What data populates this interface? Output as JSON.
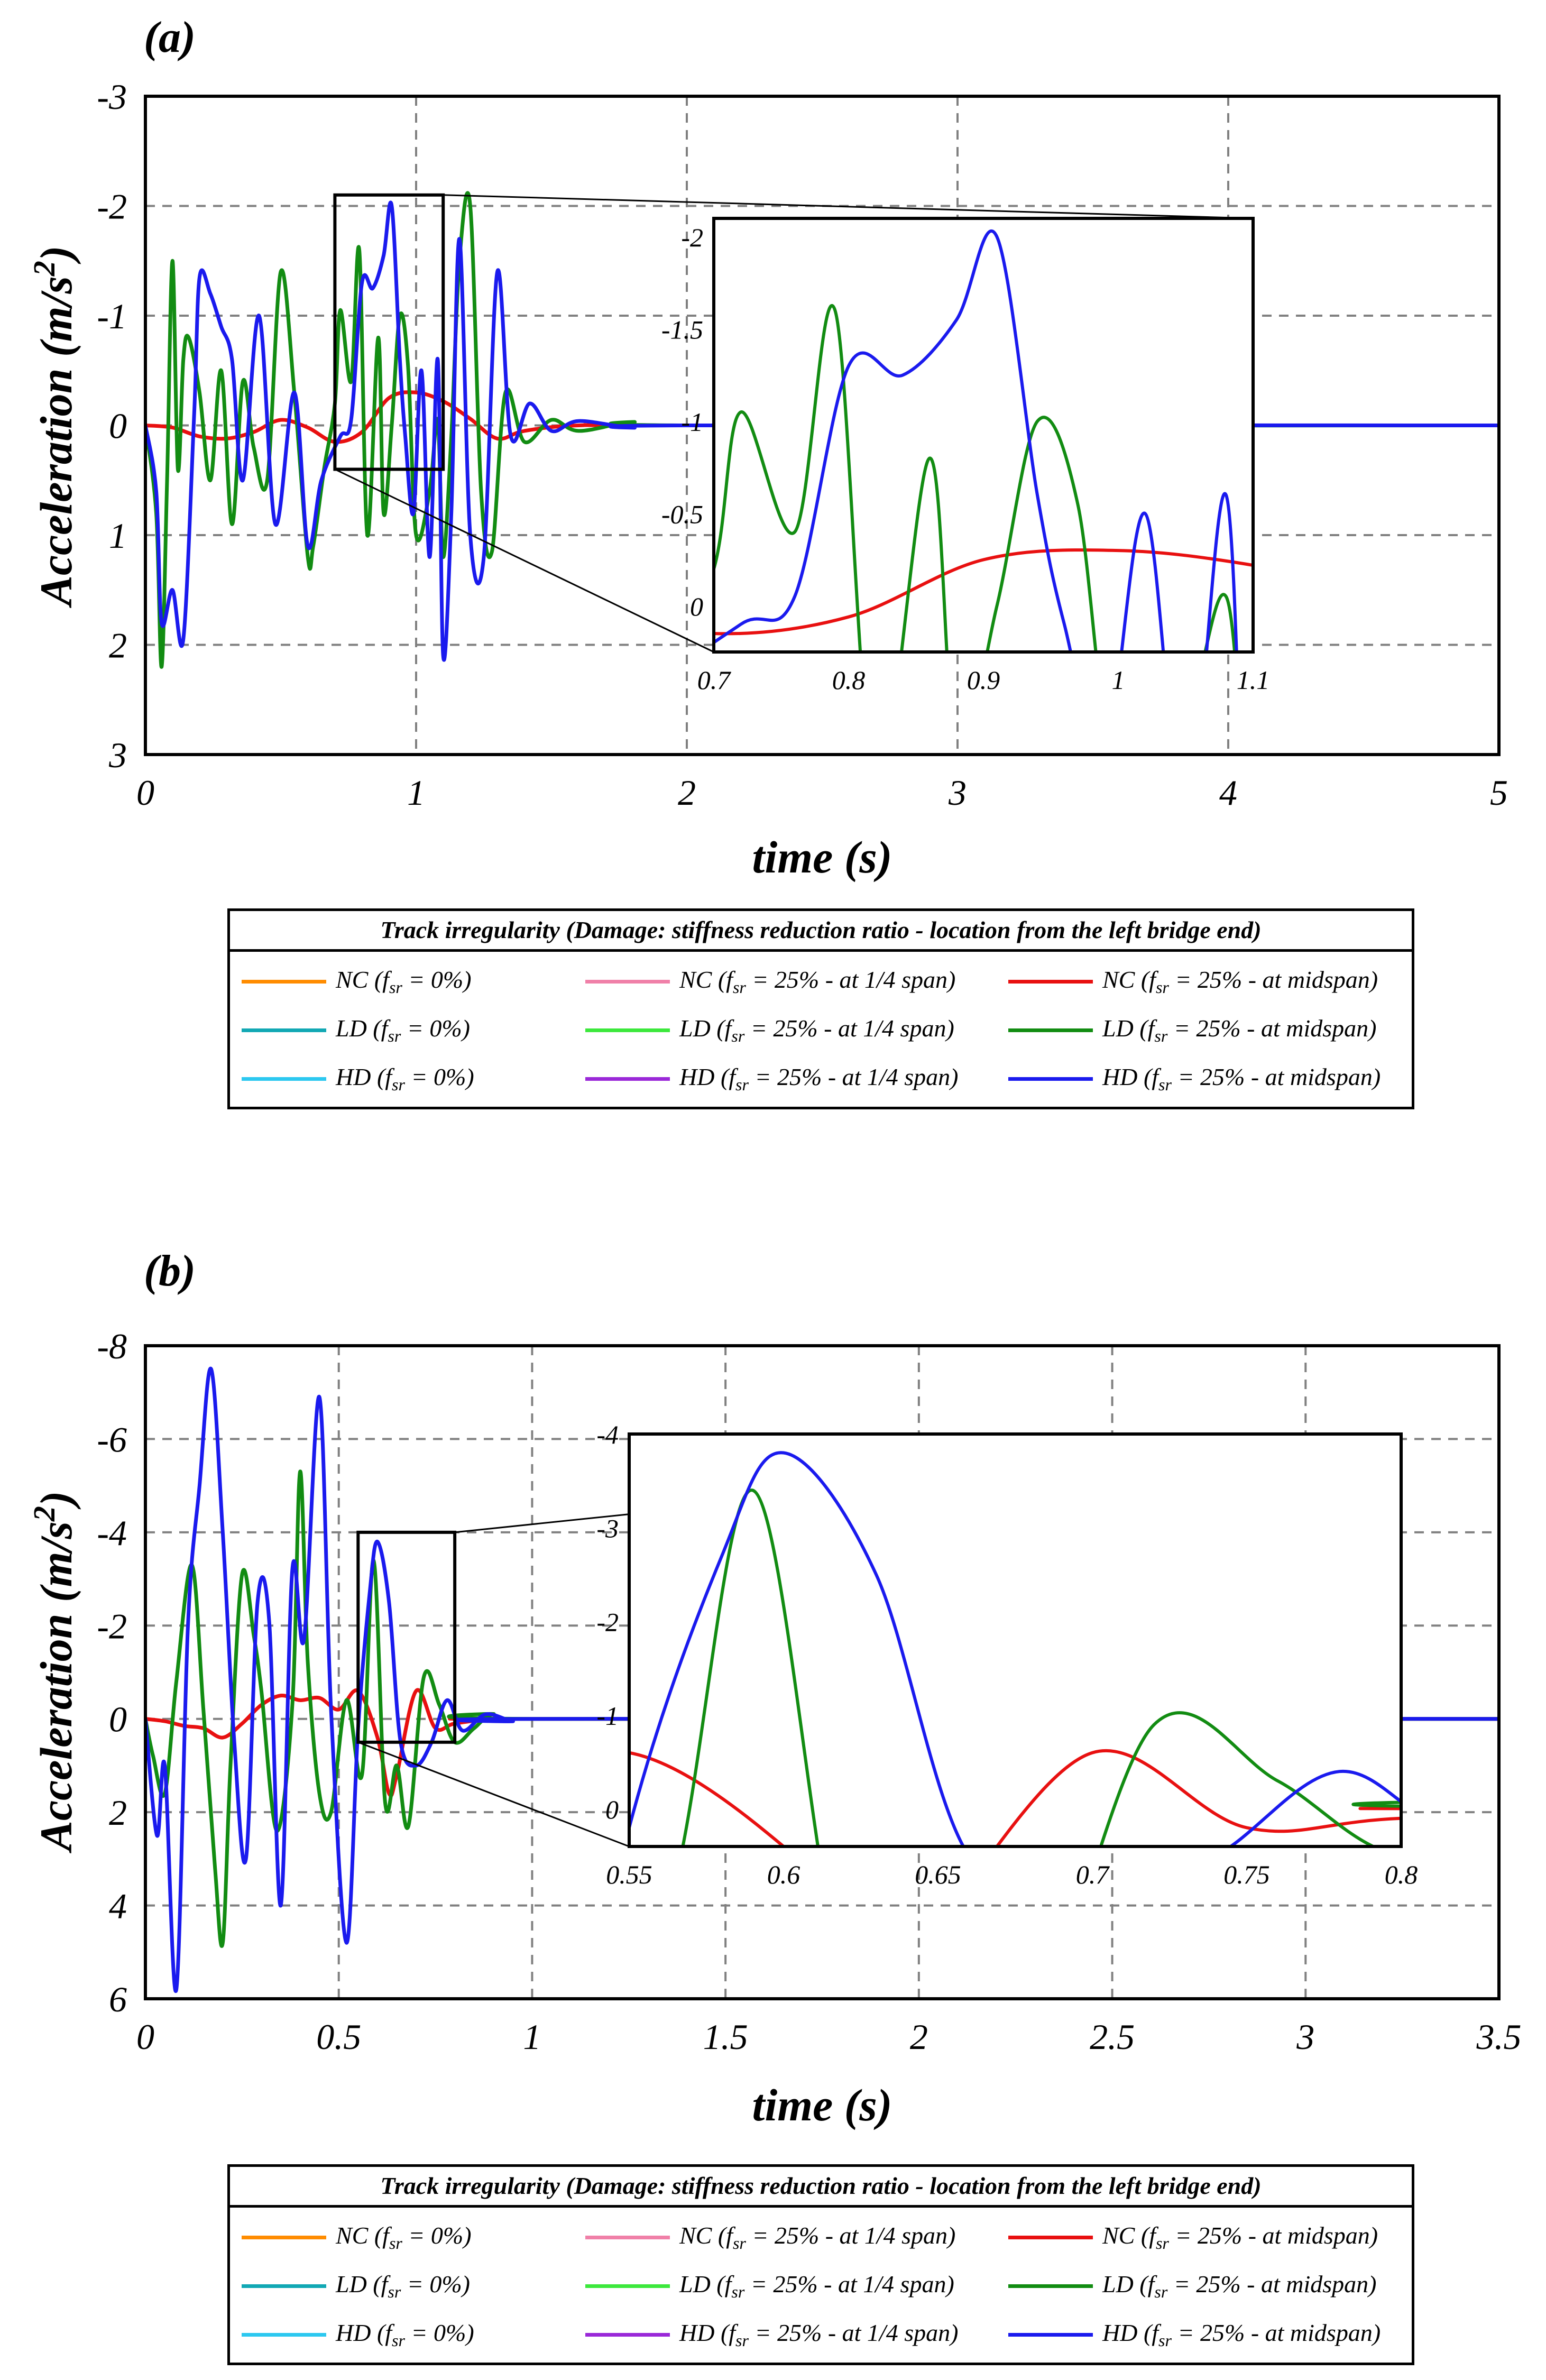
{
  "panels": [
    {
      "letter": "(a)",
      "xlabel": "time (s)",
      "ylabel": "Acceleration (m/s",
      "ylabel_sup": "2",
      "ylabel_end": ")",
      "xlim": [
        0,
        5
      ],
      "ylim": [
        -3,
        3
      ],
      "xticks": [
        0,
        1,
        2,
        3,
        4,
        5
      ],
      "yticks": [
        -3,
        -2,
        -1,
        0,
        1,
        2,
        3
      ],
      "inset": {
        "xlim": [
          0.7,
          1.1
        ],
        "ylim": [
          -2.1,
          0.25
        ],
        "xticks": [
          0.7,
          0.8,
          0.9,
          1,
          1.1
        ],
        "yticks": [
          -2,
          -1.5,
          -1,
          -0.5,
          0
        ]
      }
    },
    {
      "letter": "(b)",
      "xlabel": "time (s)",
      "ylabel": "Acceleration (m/s",
      "ylabel_sup": "2",
      "ylabel_end": ")",
      "xlim": [
        0,
        3.5
      ],
      "ylim": [
        -8,
        6
      ],
      "xticks": [
        0,
        0.5,
        1,
        1.5,
        2,
        2.5,
        3,
        3.5
      ],
      "yticks": [
        -8,
        -6,
        -4,
        -2,
        0,
        2,
        4,
        6
      ],
      "inset": {
        "xlim": [
          0.55,
          0.8
        ],
        "ylim": [
          -4,
          0.4
        ],
        "xticks": [
          0.55,
          0.6,
          0.65,
          0.7,
          0.75,
          0.8
        ],
        "yticks": [
          -4,
          -3,
          -2,
          -1,
          0
        ]
      }
    }
  ],
  "legend": {
    "title": "Track irregularity (Damage: stiffness reduction ratio - location from the left bridge end)",
    "items": [
      {
        "class": "NC",
        "desc": "(f",
        "sub": "sr",
        "rest": " = 0%)",
        "color": "#ff8c00"
      },
      {
        "class": "NC",
        "desc": "(f",
        "sub": "sr",
        "rest": " = 25% - at 1/4 span)",
        "color": "#f080a8"
      },
      {
        "class": "NC",
        "desc": "(f",
        "sub": "sr",
        "rest": " = 25% - at midspan)",
        "color": "#e81010"
      },
      {
        "class": "LD",
        "desc": "(f",
        "sub": "sr",
        "rest": " = 0%)",
        "color": "#12a8b4"
      },
      {
        "class": "LD",
        "desc": "(f",
        "sub": "sr",
        "rest": " = 25% - at 1/4 span)",
        "color": "#3ce83c"
      },
      {
        "class": "LD",
        "desc": "(f",
        "sub": "sr",
        "rest": " = 25% - at midspan)",
        "color": "#128c12"
      },
      {
        "class": "HD",
        "desc": "(f",
        "sub": "sr",
        "rest": " = 0%)",
        "color": "#2cc8f0"
      },
      {
        "class": "HD",
        "desc": "(f",
        "sub": "sr",
        "rest": " = 25% - at 1/4 span)",
        "color": "#9a28d8"
      },
      {
        "class": "HD",
        "desc": "(f",
        "sub": "sr",
        "rest": " = 25% - at midspan)",
        "color": "#1a1aee"
      }
    ]
  },
  "chart_data": [
    {
      "type": "line",
      "title": "(a)",
      "xlabel": "time (s)",
      "ylabel": "Acceleration (m/s2)",
      "xlim": [
        0,
        5
      ],
      "ylim": [
        -3,
        3
      ],
      "y_axis_reversed": true,
      "series": [
        {
          "name": "NC (fsr = 25% - at midspan)",
          "color": "#e81010",
          "x": [
            0,
            0.1,
            0.2,
            0.3,
            0.4,
            0.5,
            0.6,
            0.7,
            0.8,
            0.9,
            1.0,
            1.1,
            1.2,
            1.3,
            1.4,
            1.6,
            2.0,
            5.0
          ],
          "y": [
            0,
            0.02,
            0.1,
            0.12,
            0.06,
            -0.05,
            0.02,
            0.15,
            0.06,
            -0.25,
            -0.3,
            -0.22,
            -0.06,
            0.12,
            0.05,
            0.0,
            0.0,
            0.0
          ]
        },
        {
          "name": "LD (fsr = 25% - at midspan)",
          "color": "#128c12",
          "x": [
            0,
            0.04,
            0.06,
            0.08,
            0.1,
            0.12,
            0.14,
            0.16,
            0.2,
            0.24,
            0.28,
            0.32,
            0.36,
            0.4,
            0.45,
            0.5,
            0.55,
            0.6,
            0.62,
            0.66,
            0.7,
            0.72,
            0.76,
            0.79,
            0.82,
            0.86,
            0.88,
            0.91,
            0.94,
            0.97,
            1.0,
            1.05,
            1.08,
            1.1,
            1.13,
            1.16,
            1.2,
            1.24,
            1.28,
            1.33,
            1.4,
            1.5,
            1.6,
            1.8,
            2.0,
            5.0
          ],
          "y": [
            0,
            0.8,
            2.2,
            0.5,
            -1.5,
            0.4,
            -0.6,
            -0.8,
            -0.3,
            0.5,
            -0.5,
            0.9,
            -0.4,
            0.2,
            0.5,
            -1.4,
            -0.3,
            1.2,
            1.1,
            0.4,
            -0.2,
            -1.05,
            -0.4,
            -1.6,
            1.0,
            -0.8,
            0.8,
            0.0,
            -1.0,
            -0.55,
            1.0,
            0.6,
            -0.05,
            1.2,
            0.1,
            -1.5,
            -2.0,
            0.6,
            1.15,
            -0.3,
            0.15,
            -0.05,
            0.05,
            -0.03,
            0.0,
            0.0
          ]
        },
        {
          "name": "HD (fsr = 25% - at midspan)",
          "color": "#1a1aee",
          "x": [
            0,
            0.04,
            0.06,
            0.1,
            0.14,
            0.18,
            0.2,
            0.24,
            0.28,
            0.32,
            0.36,
            0.42,
            0.48,
            0.55,
            0.6,
            0.65,
            0.72,
            0.76,
            0.8,
            0.84,
            0.88,
            0.91,
            0.94,
            0.96,
            0.99,
            1.02,
            1.05,
            1.08,
            1.1,
            1.13,
            1.16,
            1.2,
            1.25,
            1.3,
            1.35,
            1.42,
            1.5,
            1.6,
            1.8,
            2.0,
            5.0
          ],
          "y": [
            0,
            0.6,
            1.8,
            1.5,
            1.95,
            -0.1,
            -1.35,
            -1.2,
            -0.9,
            -0.6,
            0.5,
            -1.0,
            0.9,
            -0.3,
            1.1,
            0.5,
            0.1,
            -0.05,
            -1.3,
            -1.25,
            -1.55,
            -2.0,
            -0.6,
            0.1,
            0.8,
            -0.5,
            1.2,
            -0.6,
            2.1,
            0.8,
            -1.7,
            1.0,
            1.2,
            -1.4,
            0.1,
            -0.2,
            0.05,
            -0.04,
            0.02,
            0.0,
            0.0
          ]
        }
      ],
      "inset": {
        "xlim": [
          0.7,
          1.1
        ],
        "ylim": [
          -2.1,
          0.25
        ]
      }
    },
    {
      "type": "line",
      "title": "(b)",
      "xlabel": "time (s)",
      "ylabel": "Acceleration (m/s2)",
      "xlim": [
        0,
        3.5
      ],
      "ylim": [
        -8,
        6
      ],
      "y_axis_reversed": true,
      "series": [
        {
          "name": "NC (fsr = 25% - at midspan)",
          "color": "#e81010",
          "x": [
            0,
            0.05,
            0.1,
            0.15,
            0.2,
            0.25,
            0.3,
            0.35,
            0.4,
            0.45,
            0.5,
            0.55,
            0.6,
            0.63,
            0.65,
            0.7,
            0.75,
            0.8,
            0.9,
            1.0,
            3.5
          ],
          "y": [
            0,
            0.05,
            0.15,
            0.2,
            0.4,
            0.1,
            -0.3,
            -0.5,
            -0.4,
            -0.45,
            -0.2,
            -0.6,
            0.4,
            1.6,
            1.2,
            -0.6,
            0.2,
            0.1,
            0.0,
            0.0,
            0.0
          ]
        },
        {
          "name": "LD (fsr = 25% - at midspan)",
          "color": "#128c12",
          "x": [
            0,
            0.02,
            0.05,
            0.08,
            0.12,
            0.15,
            0.18,
            0.2,
            0.22,
            0.25,
            0.28,
            0.3,
            0.34,
            0.38,
            0.4,
            0.42,
            0.45,
            0.48,
            0.52,
            0.56,
            0.59,
            0.62,
            0.65,
            0.68,
            0.72,
            0.76,
            0.8,
            0.85,
            0.9,
            1.0,
            3.5
          ],
          "y": [
            0,
            0.8,
            1.6,
            -0.8,
            -3.3,
            -0.2,
            3.2,
            4.8,
            1.0,
            -3.1,
            -1.8,
            -0.6,
            2.4,
            -0.3,
            -5.3,
            -1.2,
            1.6,
            2.0,
            -0.4,
            1.2,
            -3.4,
            1.8,
            1.0,
            2.3,
            -0.9,
            -0.3,
            0.5,
            0.2,
            -0.1,
            0.0,
            0.0
          ]
        },
        {
          "name": "HD (fsr = 25% - at midspan)",
          "color": "#1a1aee",
          "x": [
            0,
            0.03,
            0.05,
            0.08,
            0.11,
            0.14,
            0.17,
            0.2,
            0.23,
            0.26,
            0.29,
            0.32,
            0.35,
            0.38,
            0.41,
            0.45,
            0.48,
            0.52,
            0.55,
            0.58,
            0.6,
            0.63,
            0.66,
            0.7,
            0.74,
            0.78,
            0.82,
            0.88,
            0.95,
            1.0,
            3.5
          ],
          "y": [
            0,
            2.5,
            1.0,
            5.8,
            -2.0,
            -5.0,
            -7.5,
            -4.0,
            0.5,
            3.0,
            -2.5,
            -2.1,
            4.0,
            -3.2,
            -1.7,
            -6.9,
            -0.2,
            4.8,
            0.2,
            -2.7,
            -3.8,
            -2.5,
            0.5,
            1.0,
            0.5,
            -0.4,
            0.25,
            -0.1,
            0.05,
            0.0,
            0.0
          ]
        }
      ],
      "inset": {
        "xlim": [
          0.55,
          0.8
        ],
        "ylim": [
          -4,
          0.4
        ]
      }
    }
  ]
}
